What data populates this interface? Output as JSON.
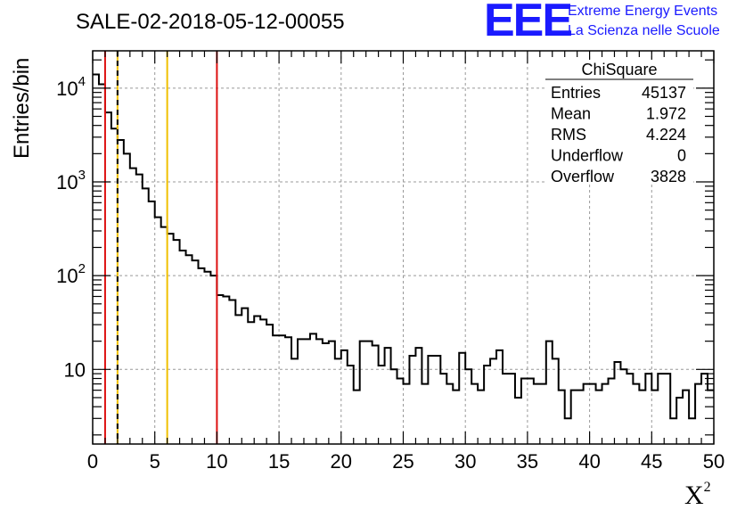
{
  "title": "SALE-02-2018-05-12-00055",
  "logo": {
    "mark": "EEE",
    "line1": "Extreme Energy Events",
    "line2": "La Scienza nelle Scuole",
    "color": "#1a1aff"
  },
  "stats": {
    "name": "ChiSquare",
    "rows": [
      {
        "label": "Entries",
        "value": "45137"
      },
      {
        "label": "Mean",
        "value": "1.972"
      },
      {
        "label": "RMS",
        "value": "4.224"
      },
      {
        "label": "Underflow",
        "value": "0"
      },
      {
        "label": "Overflow",
        "value": "3828"
      }
    ]
  },
  "chart_data": {
    "type": "histogram",
    "title": "SALE-02-2018-05-12-00055",
    "xlabel": "X²",
    "ylabel": "Entries/bin",
    "xlim": [
      0,
      50
    ],
    "ylim": [
      1.6,
      25000
    ],
    "yscale": "log",
    "grid": true,
    "bin_width": 0.5,
    "x_ticks": [
      "0",
      "5",
      "10",
      "15",
      "20",
      "25",
      "30",
      "35",
      "40",
      "45",
      "50"
    ],
    "y_ticks": [
      {
        "value": 10,
        "label": "10"
      },
      {
        "value": 100,
        "label": "10",
        "exp": "2"
      },
      {
        "value": 1000,
        "label": "10",
        "exp": "3"
      },
      {
        "value": 10000,
        "label": "10",
        "exp": "4"
      }
    ],
    "values": [
      14000,
      11000,
      5500,
      3700,
      2800,
      2000,
      1400,
      1200,
      850,
      620,
      420,
      330,
      280,
      240,
      185,
      165,
      145,
      120,
      110,
      100,
      62,
      60,
      55,
      38,
      45,
      32,
      37,
      34,
      30,
      23,
      23,
      22,
      13,
      21,
      21,
      24,
      21,
      19,
      20,
      13,
      16,
      11,
      6,
      20,
      20,
      18,
      11,
      17,
      10,
      8,
      7,
      14,
      17,
      7,
      14,
      14,
      9,
      7,
      6,
      15,
      10,
      7,
      6,
      11,
      13,
      16,
      9,
      9,
      5,
      8,
      8,
      7,
      7,
      20,
      13,
      6,
      3,
      6,
      6,
      7,
      7,
      6,
      7,
      8,
      12,
      10,
      9,
      7,
      6,
      9,
      6,
      9,
      9,
      3,
      5,
      6,
      3,
      7,
      9,
      6
    ],
    "vlines": [
      {
        "x": 1,
        "color": "#dd1111",
        "style": "solid"
      },
      {
        "x": 2,
        "color": "#f0c000",
        "style": "solid"
      },
      {
        "x": 2,
        "color": "#000000",
        "style": "dashed"
      },
      {
        "x": 6,
        "color": "#f0c000",
        "style": "solid"
      },
      {
        "x": 10,
        "color": "#dd1111",
        "style": "solid"
      }
    ]
  }
}
